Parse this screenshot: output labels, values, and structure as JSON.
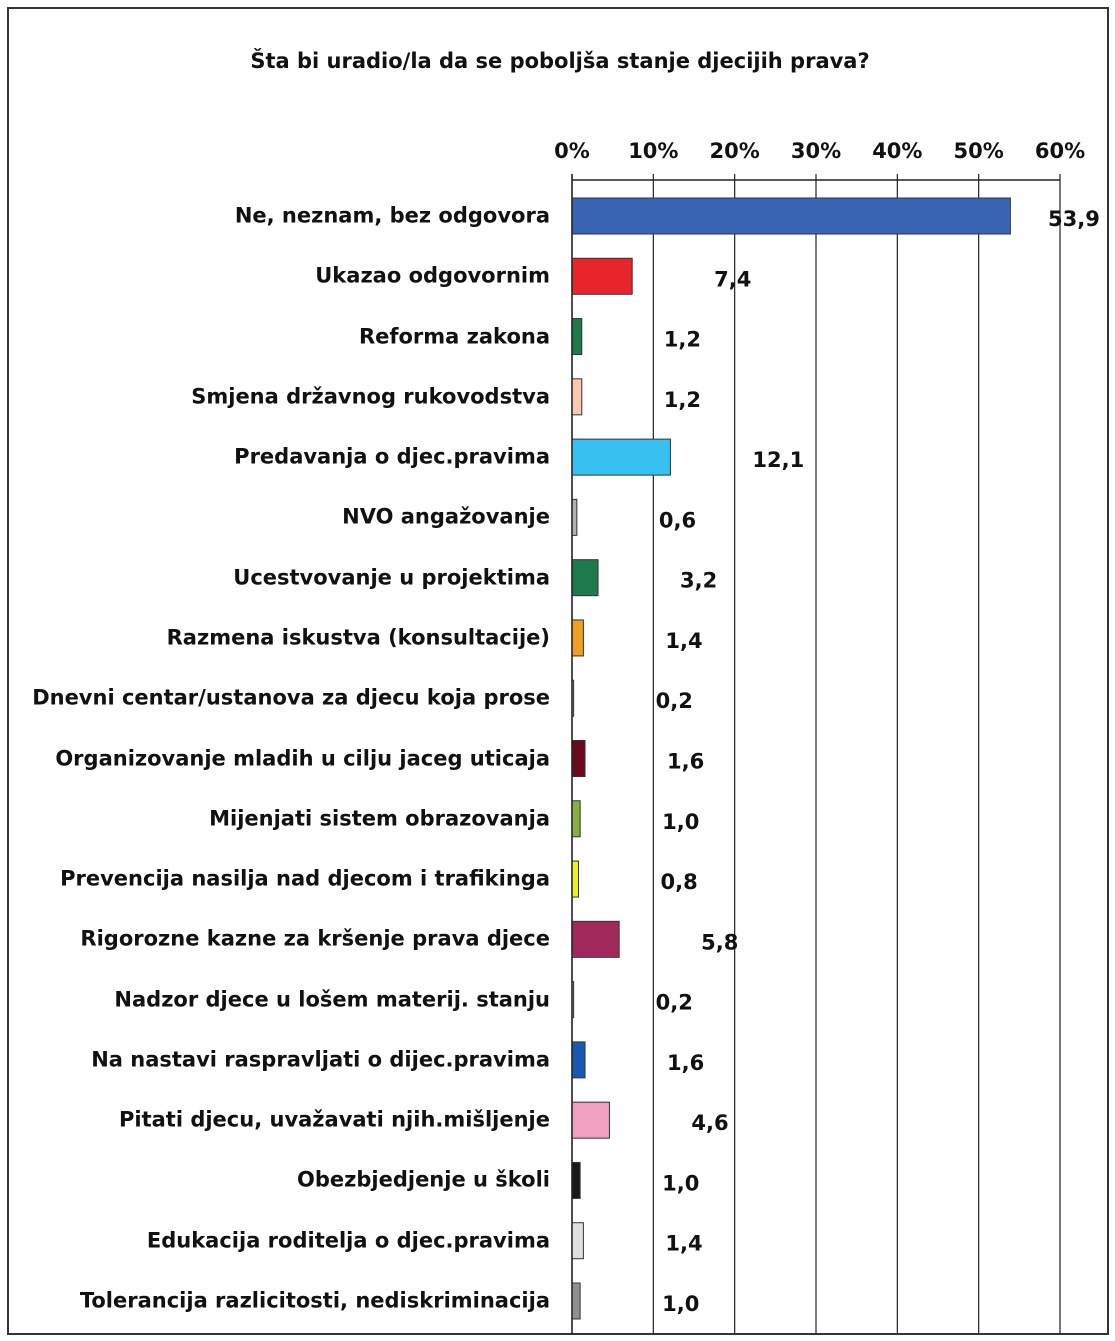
{
  "chart_data": {
    "type": "bar",
    "orientation": "horizontal",
    "title": "Šta bi uradio/la  da se poboljša stanje djecijih prava?",
    "categories": [
      "Ne, neznam, bez odgovora",
      "Ukazao odgovornim",
      "Reforma zakona",
      "Smjena državnog rukovodstva",
      "Predavanja o djec.pravima",
      "NVO angažovanje",
      "Ucestvovanje u projektima",
      "Razmena iskustva (konsultacije)",
      "Dnevni centar/ustanova za djecu koja prose",
      "Organizovanje mladih u cilju jaceg uticaja",
      "Mijenjati sistem obrazovanja",
      "Prevencija nasilja nad djecom i trafikinga",
      "Rigorozne kazne za kršenje prava djece",
      "Nadzor djece u lošem materij. stanju",
      "Na nastavi raspravljati o dijec.pravima",
      "Pitati djecu, uvažavati njih.mišljenje",
      "Obezbjedjenje u školi",
      "Edukacija roditelja o djec.pravima",
      "Tolerancija razlicitosti, nediskriminacija"
    ],
    "values": [
      53.9,
      7.4,
      1.2,
      1.2,
      12.1,
      0.6,
      3.2,
      1.4,
      0.2,
      1.6,
      1.0,
      0.8,
      5.8,
      0.2,
      1.6,
      4.6,
      1.0,
      1.4,
      1.0
    ],
    "value_labels": [
      "53,9",
      "7,4",
      "1,2",
      "1,2",
      "12,1",
      "0,6",
      "3,2",
      "1,4",
      "0,2",
      "1,6",
      "1,0",
      "0,8",
      "5,8",
      "0,2",
      "1,6",
      "4,6",
      "1,0",
      "1,4",
      "1,0"
    ],
    "colors": [
      "#3a64b4",
      "#e8252a",
      "#1e7a4a",
      "#f8c8b0",
      "#38c0f0",
      "#b0b0b0",
      "#1e7a4a",
      "#f0a020",
      "#c0c0c0",
      "#6a0a1e",
      "#88b040",
      "#f0f020",
      "#a0285a",
      "#c0c0c0",
      "#1858b0",
      "#f0a0c0",
      "#181818",
      "#e0e0e0",
      "#909090"
    ],
    "xlim": [
      0,
      60
    ],
    "xticks": [
      {
        "value": 0,
        "label": "0%"
      },
      {
        "value": 10,
        "label": "10%"
      },
      {
        "value": 20,
        "label": "20%"
      },
      {
        "value": 30,
        "label": "30%"
      },
      {
        "value": 40,
        "label": "40%"
      },
      {
        "value": 50,
        "label": "50%"
      },
      {
        "value": 60,
        "label": "60%"
      }
    ],
    "grid": true
  }
}
